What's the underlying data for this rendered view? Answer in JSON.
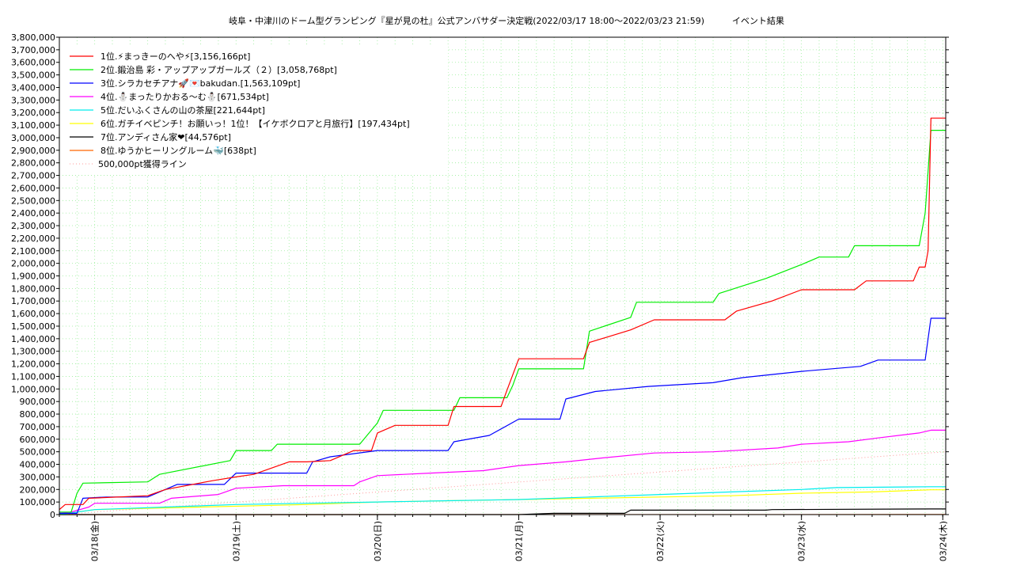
{
  "chart_data": {
    "type": "line",
    "title": "岐阜・中津川のドーム型グランピング『星が見の杜』公式アンバサダー決定戦(2022/03/17 18:00～2022/03/23 21:59)",
    "subtitle": "イベント結果",
    "ylim": [
      0,
      3800000
    ],
    "ytick_step": 100000,
    "xlim": [
      "2022-03-17T18:00",
      "2022-03-24T00:30"
    ],
    "xticks": [
      {
        "t": "2022-03-18T00:00",
        "label": "03/18(金)"
      },
      {
        "t": "2022-03-19T00:00",
        "label": "03/19(土)"
      },
      {
        "t": "2022-03-20T00:00",
        "label": "03/20(日)"
      },
      {
        "t": "2022-03-21T00:00",
        "label": "03/21(月)"
      },
      {
        "t": "2022-03-22T00:00",
        "label": "03/22(火)"
      },
      {
        "t": "2022-03-23T00:00",
        "label": "03/23(水)"
      },
      {
        "t": "2022-03-24T00:00",
        "label": "03/24(木)"
      }
    ],
    "grid": true,
    "legend_position": "top-left",
    "series": [
      {
        "name": "1位.⚡まっきーのへや⚡[3,156,166pt]",
        "color": "#ff0000",
        "points": [
          [
            "2022-03-17T18:00",
            40000
          ],
          [
            "2022-03-17T19:00",
            80000
          ],
          [
            "2022-03-17T22:00",
            80000
          ],
          [
            "2022-03-17T23:00",
            130000
          ],
          [
            "2022-03-18T09:00",
            150000
          ],
          [
            "2022-03-18T12:00",
            200000
          ],
          [
            "2022-03-18T20:00",
            270000
          ],
          [
            "2022-03-19T00:00",
            300000
          ],
          [
            "2022-03-19T03:00",
            320000
          ],
          [
            "2022-03-19T09:00",
            420000
          ],
          [
            "2022-03-19T12:00",
            420000
          ],
          [
            "2022-03-19T16:00",
            430000
          ],
          [
            "2022-03-19T20:00",
            510000
          ],
          [
            "2022-03-19T23:00",
            510000
          ],
          [
            "2022-03-20T00:00",
            650000
          ],
          [
            "2022-03-20T03:00",
            710000
          ],
          [
            "2022-03-20T12:00",
            710000
          ],
          [
            "2022-03-20T13:00",
            860000
          ],
          [
            "2022-03-20T21:00",
            860000
          ],
          [
            "2022-03-20T22:00",
            990000
          ],
          [
            "2022-03-21T00:00",
            1240000
          ],
          [
            "2022-03-21T11:00",
            1240000
          ],
          [
            "2022-03-21T12:00",
            1370000
          ],
          [
            "2022-03-21T19:00",
            1470000
          ],
          [
            "2022-03-21T23:00",
            1550000
          ],
          [
            "2022-03-22T11:00",
            1550000
          ],
          [
            "2022-03-22T13:00",
            1620000
          ],
          [
            "2022-03-22T19:00",
            1700000
          ],
          [
            "2022-03-23T00:00",
            1790000
          ],
          [
            "2022-03-23T09:00",
            1790000
          ],
          [
            "2022-03-23T11:00",
            1860000
          ],
          [
            "2022-03-23T19:00",
            1860000
          ],
          [
            "2022-03-23T20:00",
            1970000
          ],
          [
            "2022-03-23T21:00",
            1970000
          ],
          [
            "2022-03-23T21:30",
            2100000
          ],
          [
            "2022-03-23T21:59",
            3156166
          ],
          [
            "2022-03-24T00:30",
            3156166
          ]
        ]
      },
      {
        "name": "2位.鍛治島 彩・アップアップガールズ（２）[3,058,768pt]",
        "color": "#00ee00",
        "points": [
          [
            "2022-03-17T18:00",
            20000
          ],
          [
            "2022-03-17T20:00",
            20000
          ],
          [
            "2022-03-17T21:00",
            170000
          ],
          [
            "2022-03-17T22:00",
            250000
          ],
          [
            "2022-03-18T09:00",
            260000
          ],
          [
            "2022-03-18T11:00",
            320000
          ],
          [
            "2022-03-18T23:00",
            430000
          ],
          [
            "2022-03-19T00:00",
            510000
          ],
          [
            "2022-03-19T06:00",
            510000
          ],
          [
            "2022-03-19T07:00",
            560000
          ],
          [
            "2022-03-19T21:00",
            560000
          ],
          [
            "2022-03-20T00:00",
            730000
          ],
          [
            "2022-03-20T01:00",
            830000
          ],
          [
            "2022-03-20T13:00",
            830000
          ],
          [
            "2022-03-20T14:00",
            930000
          ],
          [
            "2022-03-20T22:00",
            930000
          ],
          [
            "2022-03-20T23:00",
            1030000
          ],
          [
            "2022-03-21T00:00",
            1160000
          ],
          [
            "2022-03-21T11:00",
            1160000
          ],
          [
            "2022-03-21T12:00",
            1460000
          ],
          [
            "2022-03-21T19:00",
            1570000
          ],
          [
            "2022-03-21T20:00",
            1690000
          ],
          [
            "2022-03-22T09:00",
            1690000
          ],
          [
            "2022-03-22T10:00",
            1760000
          ],
          [
            "2022-03-22T18:00",
            1880000
          ],
          [
            "2022-03-23T00:00",
            1990000
          ],
          [
            "2022-03-23T03:00",
            2050000
          ],
          [
            "2022-03-23T08:00",
            2050000
          ],
          [
            "2022-03-23T09:00",
            2140000
          ],
          [
            "2022-03-23T20:00",
            2140000
          ],
          [
            "2022-03-23T21:00",
            2400000
          ],
          [
            "2022-03-23T21:59",
            3058768
          ],
          [
            "2022-03-24T00:30",
            3058768
          ]
        ]
      },
      {
        "name": "3位.シラカセチアナ🚀💌bakudan.[1,563,109pt]",
        "color": "#0000ff",
        "points": [
          [
            "2022-03-17T18:00",
            10000
          ],
          [
            "2022-03-17T21:00",
            10000
          ],
          [
            "2022-03-17T22:00",
            130000
          ],
          [
            "2022-03-18T02:00",
            140000
          ],
          [
            "2022-03-18T09:00",
            140000
          ],
          [
            "2022-03-18T11:00",
            180000
          ],
          [
            "2022-03-18T14:00",
            240000
          ],
          [
            "2022-03-18T22:00",
            240000
          ],
          [
            "2022-03-19T00:00",
            330000
          ],
          [
            "2022-03-19T12:00",
            330000
          ],
          [
            "2022-03-19T13:00",
            420000
          ],
          [
            "2022-03-19T16:00",
            460000
          ],
          [
            "2022-03-20T00:00",
            510000
          ],
          [
            "2022-03-20T12:00",
            510000
          ],
          [
            "2022-03-20T13:00",
            580000
          ],
          [
            "2022-03-20T19:00",
            630000
          ],
          [
            "2022-03-21T00:00",
            760000
          ],
          [
            "2022-03-21T07:00",
            760000
          ],
          [
            "2022-03-21T08:00",
            920000
          ],
          [
            "2022-03-21T13:00",
            980000
          ],
          [
            "2022-03-21T22:00",
            1020000
          ],
          [
            "2022-03-22T09:00",
            1050000
          ],
          [
            "2022-03-22T14:00",
            1090000
          ],
          [
            "2022-03-23T00:00",
            1140000
          ],
          [
            "2022-03-23T10:00",
            1180000
          ],
          [
            "2022-03-23T13:00",
            1230000
          ],
          [
            "2022-03-23T21:00",
            1230000
          ],
          [
            "2022-03-23T21:30",
            1400000
          ],
          [
            "2022-03-23T21:59",
            1563109
          ],
          [
            "2022-03-24T00:30",
            1563109
          ]
        ]
      },
      {
        "name": "4位.⛄まったりかおる〜む⛄[671,534pt]",
        "color": "#ff00ff",
        "points": [
          [
            "2022-03-17T18:00",
            10000
          ],
          [
            "2022-03-17T20:00",
            20000
          ],
          [
            "2022-03-17T23:00",
            60000
          ],
          [
            "2022-03-18T00:00",
            90000
          ],
          [
            "2022-03-18T11:00",
            90000
          ],
          [
            "2022-03-18T13:00",
            130000
          ],
          [
            "2022-03-18T21:00",
            160000
          ],
          [
            "2022-03-19T00:00",
            210000
          ],
          [
            "2022-03-19T08:00",
            230000
          ],
          [
            "2022-03-19T20:00",
            230000
          ],
          [
            "2022-03-19T21:00",
            260000
          ],
          [
            "2022-03-20T00:00",
            310000
          ],
          [
            "2022-03-20T09:00",
            330000
          ],
          [
            "2022-03-20T18:00",
            350000
          ],
          [
            "2022-03-21T00:00",
            390000
          ],
          [
            "2022-03-21T08:00",
            420000
          ],
          [
            "2022-03-21T14:00",
            450000
          ],
          [
            "2022-03-21T23:00",
            490000
          ],
          [
            "2022-03-22T09:00",
            500000
          ],
          [
            "2022-03-22T20:00",
            530000
          ],
          [
            "2022-03-23T00:00",
            560000
          ],
          [
            "2022-03-23T08:00",
            580000
          ],
          [
            "2022-03-23T13:00",
            610000
          ],
          [
            "2022-03-23T20:00",
            650000
          ],
          [
            "2022-03-23T21:59",
            671534
          ],
          [
            "2022-03-24T00:30",
            671534
          ]
        ]
      },
      {
        "name": "5位.だいふくさんの山の茶屋[221,644pt]",
        "color": "#00eeee",
        "points": [
          [
            "2022-03-17T18:00",
            0
          ],
          [
            "2022-03-18T00:00",
            40000
          ],
          [
            "2022-03-18T12:00",
            60000
          ],
          [
            "2022-03-19T00:00",
            80000
          ],
          [
            "2022-03-19T12:00",
            90000
          ],
          [
            "2022-03-20T00:00",
            100000
          ],
          [
            "2022-03-20T12:00",
            110000
          ],
          [
            "2022-03-21T00:00",
            120000
          ],
          [
            "2022-03-21T12:00",
            140000
          ],
          [
            "2022-03-22T00:00",
            160000
          ],
          [
            "2022-03-22T12:00",
            180000
          ],
          [
            "2022-03-23T00:00",
            200000
          ],
          [
            "2022-03-23T06:00",
            215000
          ],
          [
            "2022-03-23T21:59",
            221644
          ],
          [
            "2022-03-24T00:30",
            221644
          ]
        ]
      },
      {
        "name": "6位.ガチイベピンチ！お願いっ！1位！【イケボクロアと月旅行】[197,434pt]",
        "color": "#ffff00",
        "points": [
          [
            "2022-03-17T18:00",
            0
          ],
          [
            "2022-03-18T00:00",
            40000
          ],
          [
            "2022-03-18T18:00",
            60000
          ],
          [
            "2022-03-19T12:00",
            80000
          ],
          [
            "2022-03-20T00:00",
            100000
          ],
          [
            "2022-03-20T12:00",
            110000
          ],
          [
            "2022-03-21T00:00",
            120000
          ],
          [
            "2022-03-21T12:00",
            130000
          ],
          [
            "2022-03-22T00:00",
            140000
          ],
          [
            "2022-03-22T12:00",
            150000
          ],
          [
            "2022-03-23T00:00",
            170000
          ],
          [
            "2022-03-23T12:00",
            180000
          ],
          [
            "2022-03-23T21:59",
            197434
          ],
          [
            "2022-03-24T00:30",
            197434
          ]
        ]
      },
      {
        "name": "7位.アンディさん家❤[44,576pt]",
        "color": "#000000",
        "points": [
          [
            "2022-03-17T18:00",
            0
          ],
          [
            "2022-03-21T00:00",
            0
          ],
          [
            "2022-03-21T06:00",
            10000
          ],
          [
            "2022-03-21T18:00",
            10000
          ],
          [
            "2022-03-21T19:00",
            35000
          ],
          [
            "2022-03-22T18:00",
            35000
          ],
          [
            "2022-03-22T19:00",
            40000
          ],
          [
            "2022-03-23T21:59",
            44576
          ],
          [
            "2022-03-24T00:30",
            44576
          ]
        ]
      },
      {
        "name": "8位.ゆうかヒーリングルーム🐳[638pt]",
        "color": "#ff6600",
        "points": [
          [
            "2022-03-17T18:00",
            0
          ],
          [
            "2022-03-24T00:30",
            638
          ]
        ]
      }
    ],
    "reference_line": {
      "label": "500,000pt獲得ライン",
      "color": "#ff9999",
      "from": [
        "2022-03-17T18:00",
        0
      ],
      "to": [
        "2022-03-24T00:30",
        500000
      ]
    }
  }
}
